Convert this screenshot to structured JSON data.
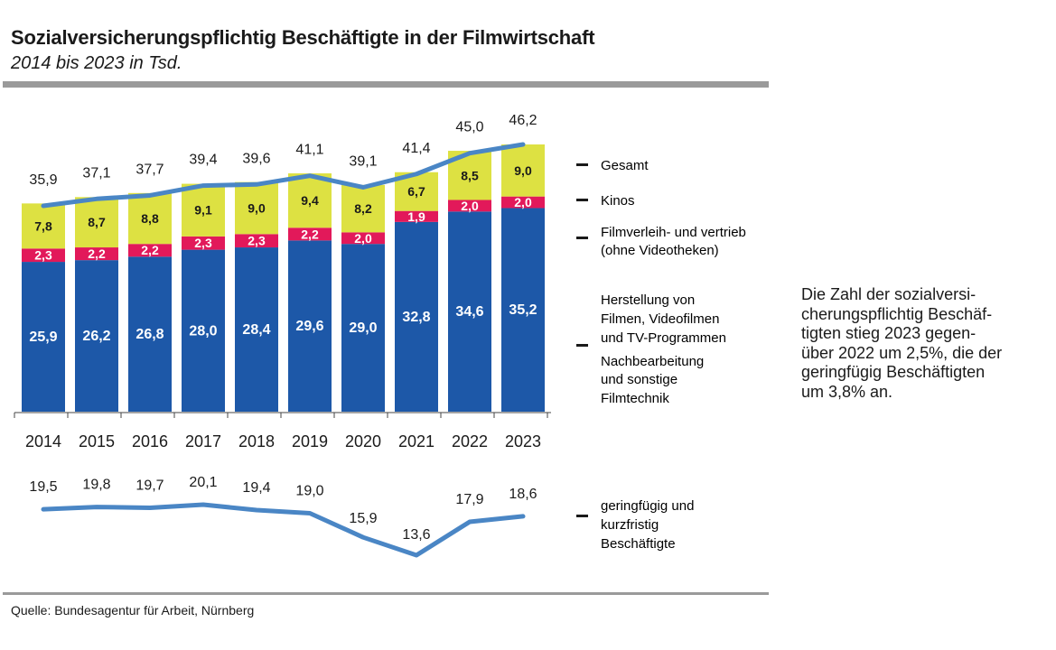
{
  "header": {
    "title": "Sozialversicherungspflichtig Beschäftigte in der Filmwirtschaft",
    "subtitle": "2014 bis 2023 in Tsd."
  },
  "note": {
    "text": "Die Zahl der sozialversi-\ncherungspflichtig Beschäf-\ntigten stieg 2023 gegen-\nüber 2022 um 2,5%, die der\ngeringfügig Beschäftigten\num 3,8% an."
  },
  "footer": {
    "source": "Quelle: Bundesagentur für Arbeit, Nürnberg"
  },
  "colors": {
    "production": "#1d58a8",
    "distribution": "#e2195a",
    "cinemas": "#dde142",
    "line": "#4a86c5",
    "rule": "#9a9a9a"
  },
  "chart_data": [
    {
      "type": "bar",
      "stacked": true,
      "title": "Sozialversicherungspflichtig Beschäftigte in der Filmwirtschaft",
      "subtitle": "2014 bis 2023 in Tsd.",
      "categories": [
        "2014",
        "2015",
        "2016",
        "2017",
        "2018",
        "2019",
        "2020",
        "2021",
        "2022",
        "2023"
      ],
      "series": [
        {
          "name": "Herstellung von Filmen, Videofilmen und TV-Programmen Nachbearbeitung und sonstige Filmtechnik",
          "color": "#1d58a8",
          "values": [
            25.9,
            26.2,
            26.8,
            28.0,
            28.4,
            29.6,
            29.0,
            32.8,
            34.6,
            35.2
          ],
          "labels": [
            "25,9",
            "26,2",
            "26,8",
            "28,0",
            "28,4",
            "29,6",
            "29,0",
            "32,8",
            "34,6",
            "35,2"
          ]
        },
        {
          "name": "Filmverleih- und vertrieb (ohne Videotheken)",
          "color": "#e2195a",
          "values": [
            2.3,
            2.2,
            2.2,
            2.3,
            2.3,
            2.2,
            2.0,
            1.9,
            2.0,
            2.0
          ],
          "labels": [
            "2,3",
            "2,2",
            "2,2",
            "2,3",
            "2,3",
            "2,2",
            "2,0",
            "1,9",
            "2,0",
            "2,0"
          ]
        },
        {
          "name": "Kinos",
          "color": "#dde142",
          "values": [
            7.8,
            8.7,
            8.8,
            9.1,
            9.0,
            9.4,
            8.2,
            6.7,
            8.5,
            9.0
          ],
          "labels": [
            "7,8",
            "8,7",
            "8,8",
            "9,1",
            "9,0",
            "9,4",
            "8,2",
            "6,7",
            "8,5",
            "9,0"
          ]
        }
      ],
      "total": {
        "name": "Gesamt",
        "values": [
          35.9,
          37.1,
          37.7,
          39.4,
          39.6,
          41.1,
          39.1,
          41.4,
          45.0,
          46.2
        ],
        "labels": [
          "35,9",
          "37,1",
          "37,7",
          "39,4",
          "39,6",
          "41,1",
          "39,1",
          "41,4",
          "45,0",
          "46,2"
        ]
      },
      "ylim": [
        0,
        48
      ],
      "legend": {
        "gesamt": "Gesamt",
        "kinos": "Kinos",
        "verleih_1": "Filmverleih- und vertrieb",
        "verleih_2": "(ohne Videotheken)",
        "herstellung_1": "Herstellung von",
        "herstellung_2": "Filmen, Videofilmen",
        "herstellung_3": "und TV-Programmen",
        "herstellung_4": "Nachbearbeitung",
        "herstellung_5": "und sonstige",
        "herstellung_6": "Filmtechnik"
      }
    },
    {
      "type": "line",
      "name": "geringfügig und kurzfristig Beschäftigte",
      "categories": [
        "2014",
        "2015",
        "2016",
        "2017",
        "2018",
        "2019",
        "2020",
        "2021",
        "2022",
        "2023"
      ],
      "values": [
        19.5,
        19.8,
        19.7,
        20.1,
        19.4,
        19.0,
        15.9,
        13.6,
        17.9,
        18.6
      ],
      "labels": [
        "19,5",
        "19,8",
        "19,7",
        "20,1",
        "19,4",
        "19,0",
        "15,9",
        "13,6",
        "17,9",
        "18,6"
      ],
      "ylim": [
        13.6,
        20.1
      ],
      "legend": {
        "line1": "geringfügig  und",
        "line2": "kurzfristig",
        "line3": "Beschäftigte"
      }
    }
  ]
}
